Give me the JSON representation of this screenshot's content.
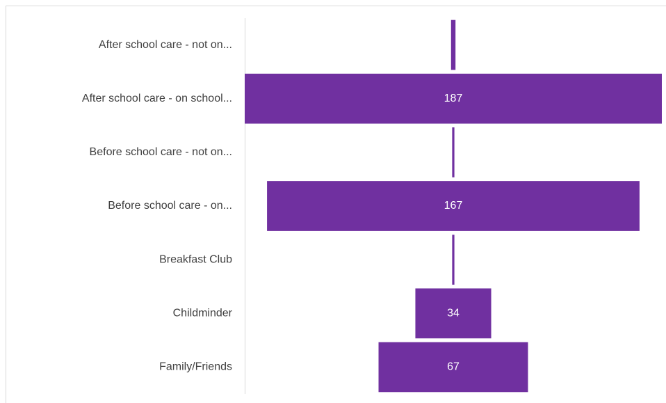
{
  "chart_data": {
    "type": "funnel",
    "categories": [
      "After school care - not on...",
      "After school care -  on school...",
      "Before school care - not on...",
      "Before school care -  on...",
      "Breakfast Club",
      "Childminder",
      "Family/Friends"
    ],
    "values": [
      2,
      187,
      1,
      167,
      1,
      34,
      67
    ],
    "color": "#7030a0"
  }
}
